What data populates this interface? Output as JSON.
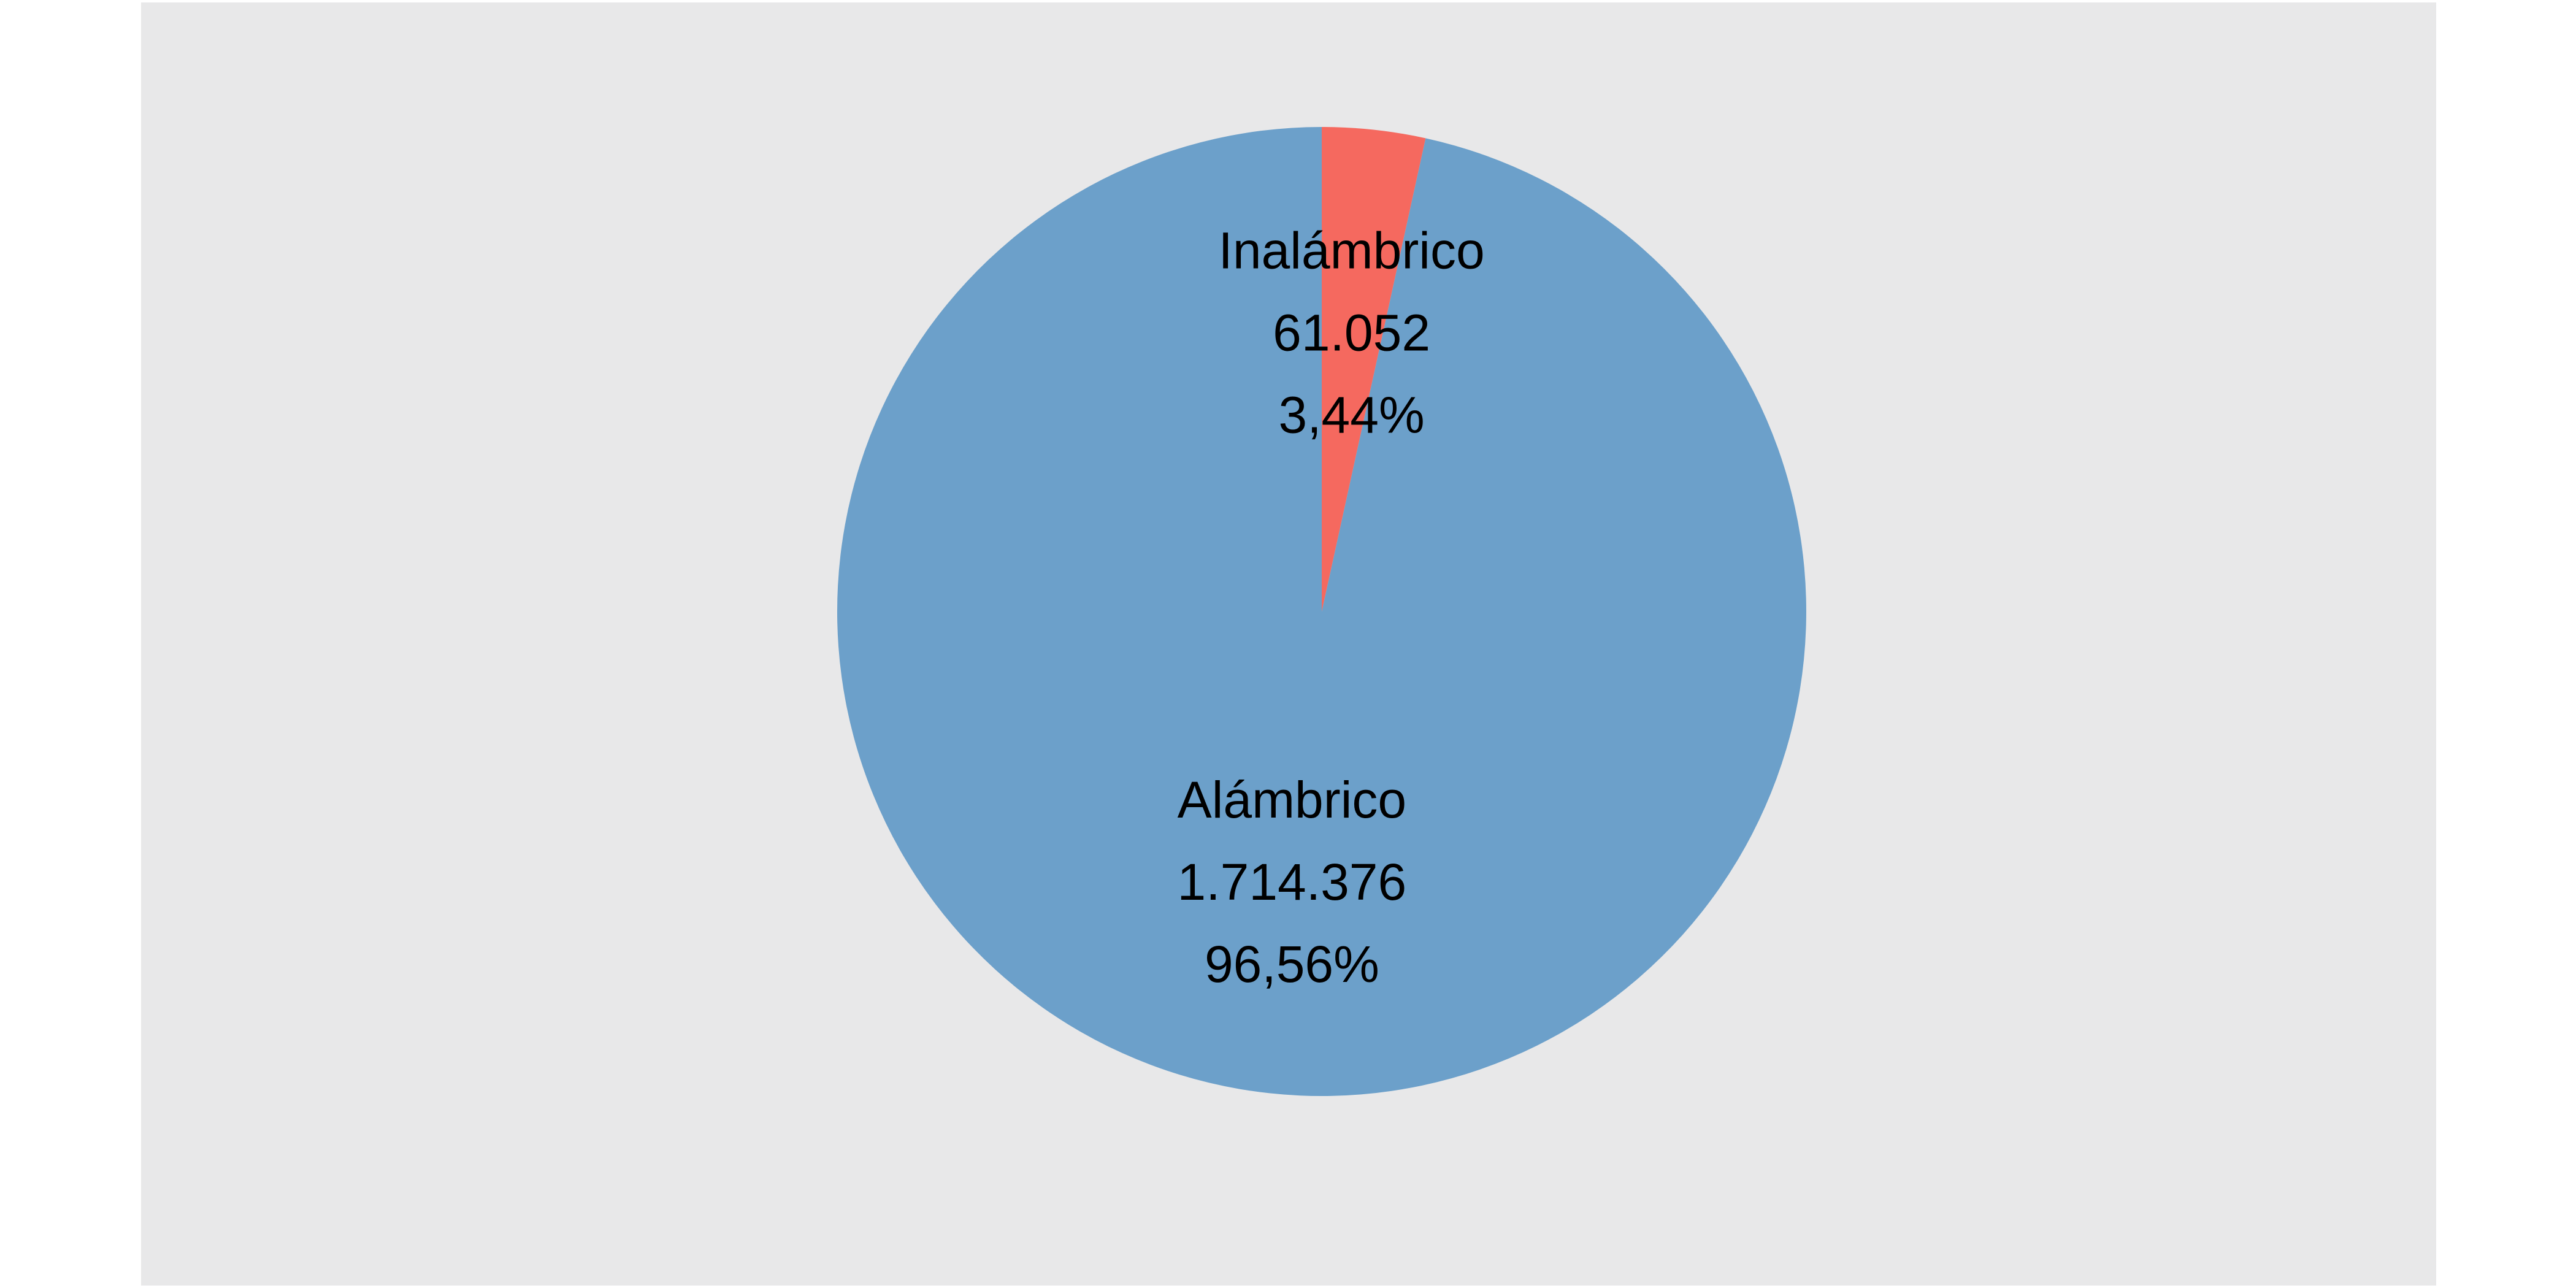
{
  "chart_data": {
    "type": "pie",
    "title": "",
    "slices": [
      {
        "name": "Alámbrico",
        "value": 1714376,
        "value_label": "1.714.376",
        "percent_label": "96,56%",
        "color": "#6CA0CA"
      },
      {
        "name": "Inalámbrico",
        "value": 61052,
        "value_label": "61.052",
        "percent_label": "3,44%",
        "color": "#F5695F"
      }
    ],
    "start_angle": "12 o'clock",
    "direction": "counterclockwise",
    "background_color": "#E8E8E9",
    "legend": "none"
  }
}
